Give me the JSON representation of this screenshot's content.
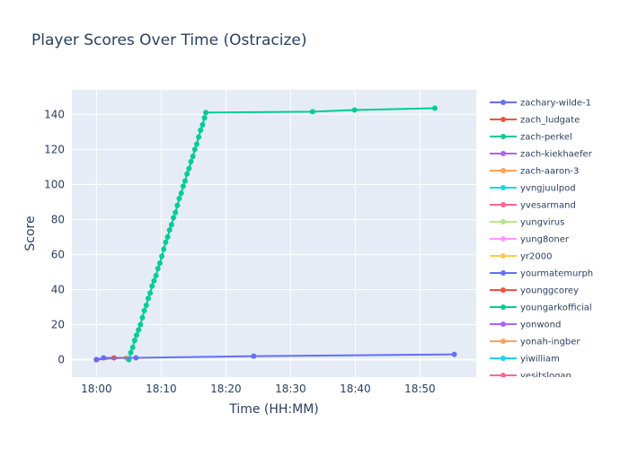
{
  "chart_data": {
    "type": "line",
    "title": "Player Scores Over Time (Ostracize)",
    "xlabel": "Time (HH:MM)",
    "ylabel": "Score",
    "x_ticks": [
      "18:00",
      "18:10",
      "18:20",
      "18:30",
      "18:40",
      "18:50"
    ],
    "x_tick_minutes": [
      0,
      10,
      20,
      30,
      40,
      50
    ],
    "xlim_minutes": [
      -3.8,
      58.7
    ],
    "y_ticks": [
      0,
      20,
      40,
      60,
      80,
      100,
      120,
      140
    ],
    "ylim": [
      -10,
      154
    ],
    "grid": true,
    "legend_position": "right",
    "colors": {
      "plot_bg": "#E5ECF6",
      "grid": "#ffffff",
      "text": "#2a3f5f"
    },
    "series": [
      {
        "name": "zachary-wilde-1",
        "color": "#636efa",
        "x_minutes": [
          0.0,
          1.1,
          6.1,
          24.3,
          55.3
        ],
        "values": [
          0,
          1,
          1,
          2,
          3
        ]
      },
      {
        "name": "zach_ludgate",
        "color": "#EF553B",
        "x_minutes": [
          0.0,
          2.7
        ],
        "values": [
          0,
          1
        ]
      },
      {
        "name": "zach-perkel",
        "color": "#00cc96",
        "x_minutes": [
          5.0,
          5.3,
          5.6,
          5.9,
          6.2,
          6.5,
          6.8,
          7.1,
          7.4,
          7.7,
          8.0,
          8.3,
          8.6,
          8.9,
          9.2,
          9.5,
          9.8,
          10.1,
          10.4,
          10.7,
          11.0,
          11.3,
          11.6,
          11.9,
          12.2,
          12.5,
          12.8,
          13.1,
          13.4,
          13.7,
          14.0,
          14.3,
          14.6,
          14.9,
          15.2,
          15.5,
          15.8,
          16.1,
          16.4,
          16.7,
          16.9,
          33.4,
          39.9,
          52.3
        ],
        "values": [
          0,
          4,
          7,
          11,
          14,
          17,
          20,
          24,
          28,
          31,
          35,
          38,
          42,
          45,
          48,
          52,
          55,
          59,
          63,
          67,
          70,
          74,
          77,
          81,
          84,
          88,
          92,
          95,
          99,
          102,
          106,
          109,
          113,
          116,
          120,
          123,
          127,
          131,
          134,
          138,
          141,
          141.5,
          142.5,
          143.5
        ]
      },
      {
        "name": "zach-kiekhaefer",
        "color": "#ab63fa",
        "x_minutes": [
          0.0
        ],
        "values": [
          0
        ]
      },
      {
        "name": "zach-aaron-3",
        "color": "#FFA15A",
        "x_minutes": [
          0.0,
          4.6
        ],
        "values": [
          0,
          1
        ]
      },
      {
        "name": "yvngjuulpod",
        "color": "#19d3f3",
        "x_minutes": [
          0.0
        ],
        "values": [
          0
        ]
      },
      {
        "name": "yvesarmand",
        "color": "#FF6692",
        "x_minutes": [
          0.0
        ],
        "values": [
          0
        ]
      },
      {
        "name": "yungvirus",
        "color": "#B6E880",
        "x_minutes": [
          0.0
        ],
        "values": [
          0
        ]
      },
      {
        "name": "yung8oner",
        "color": "#FF97FF",
        "x_minutes": [
          0.0
        ],
        "values": [
          0
        ]
      },
      {
        "name": "yr2000",
        "color": "#FECB52",
        "x_minutes": [
          0.0
        ],
        "values": [
          0
        ]
      },
      {
        "name": "yourmatemurph",
        "color": "#636efa",
        "x_minutes": [
          0.0
        ],
        "values": [
          0
        ]
      },
      {
        "name": "younggcorey",
        "color": "#EF553B",
        "x_minutes": [
          0.0
        ],
        "values": [
          0
        ]
      },
      {
        "name": "youngarkofficial",
        "color": "#00cc96",
        "x_minutes": [
          0.0
        ],
        "values": [
          0
        ]
      },
      {
        "name": "yonwond",
        "color": "#ab63fa",
        "x_minutes": [
          0.0
        ],
        "values": [
          0
        ]
      },
      {
        "name": "yonah-ingber",
        "color": "#FFA15A",
        "x_minutes": [
          0.0
        ],
        "values": [
          0
        ]
      },
      {
        "name": "yiwilliam",
        "color": "#19d3f3",
        "x_minutes": [
          0.0
        ],
        "values": [
          0
        ]
      },
      {
        "name": "yesitslogan",
        "color": "#FF6692",
        "x_minutes": [
          0.0
        ],
        "values": [
          0
        ]
      }
    ]
  }
}
